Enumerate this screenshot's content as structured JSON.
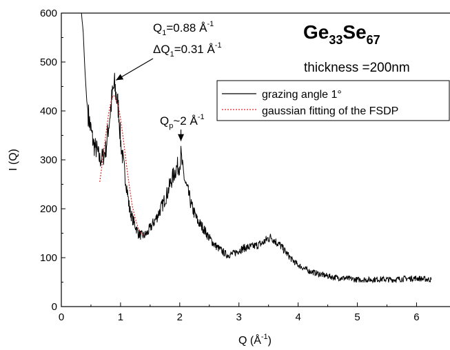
{
  "chart_data": {
    "type": "line",
    "title": {
      "base1": "Ge",
      "sub1": "33",
      "base2": "Se",
      "sub2": "67"
    },
    "subtitle": "thickness =200nm",
    "xlabel": {
      "base": "Q (",
      "unit": "Å",
      "sup": "-1",
      "close": ")"
    },
    "ylabel": "I (Q)",
    "xlim": [
      0,
      6.6
    ],
    "ylim": [
      0,
      600
    ],
    "xticks": [
      0,
      1,
      2,
      3,
      4,
      5,
      6
    ],
    "yticks": [
      0,
      100,
      200,
      300,
      400,
      500,
      600
    ],
    "legend": {
      "placement": "top-right",
      "entries": [
        {
          "label": "grazing angle 1°",
          "color": "#000000",
          "style": "solid"
        },
        {
          "label": "gaussian fitting of the FSDP",
          "color": "#e02020",
          "style": "dotted"
        }
      ]
    },
    "annotations": [
      {
        "line1": {
          "base": "Q",
          "sub": "1",
          "rest": "=0.88 Å",
          "sup": "-1"
        },
        "line2": {
          "base": "ΔQ",
          "sub": "1",
          "rest": "=0.31 Å",
          "sup": "-1"
        },
        "arrow_to": {
          "x": 0.9,
          "y": 460
        }
      },
      {
        "line1": {
          "base": "Q",
          "sub": "p",
          "rest": "~2 Å",
          "sup": "-1"
        },
        "arrow_to": {
          "x": 2.02,
          "y": 330
        }
      }
    ],
    "series": [
      {
        "name": "grazing angle 1°",
        "color": "#000000",
        "x": [
          0.34,
          0.37,
          0.4,
          0.43,
          0.46,
          0.5,
          0.55,
          0.6,
          0.65,
          0.7,
          0.75,
          0.8,
          0.85,
          0.88,
          0.9,
          0.93,
          0.97,
          1.0,
          1.05,
          1.1,
          1.15,
          1.2,
          1.25,
          1.3,
          1.35,
          1.4,
          1.45,
          1.5,
          1.6,
          1.7,
          1.8,
          1.85,
          1.9,
          1.95,
          2.0,
          2.02,
          2.05,
          2.1,
          2.15,
          2.2,
          2.3,
          2.4,
          2.5,
          2.6,
          2.7,
          2.8,
          2.9,
          3.0,
          3.1,
          3.2,
          3.3,
          3.4,
          3.5,
          3.55,
          3.6,
          3.7,
          3.8,
          3.9,
          4.0,
          4.1,
          4.2,
          4.4,
          4.6,
          4.8,
          5.0,
          5.2,
          5.4,
          5.6,
          5.8,
          6.0,
          6.25
        ],
        "y": [
          600,
          560,
          480,
          420,
          390,
          360,
          330,
          320,
          300,
          305,
          320,
          370,
          420,
          445,
          450,
          430,
          400,
          340,
          290,
          250,
          200,
          180,
          165,
          150,
          145,
          145,
          150,
          160,
          180,
          205,
          235,
          255,
          270,
          285,
          290,
          310,
          280,
          250,
          230,
          205,
          175,
          160,
          140,
          125,
          115,
          105,
          108,
          115,
          120,
          122,
          125,
          130,
          140,
          142,
          135,
          125,
          110,
          95,
          85,
          78,
          72,
          65,
          60,
          58,
          55,
          55,
          56,
          55,
          57,
          58,
          55
        ]
      },
      {
        "name": "gaussian fitting of the FSDP",
        "color": "#e02020",
        "x": [
          0.65,
          0.7,
          0.75,
          0.8,
          0.85,
          0.88,
          0.9,
          0.95,
          1.0,
          1.05,
          1.1,
          1.15,
          1.2,
          1.25,
          1.3,
          1.35,
          1.4
        ],
        "y": [
          255,
          300,
          350,
          395,
          425,
          432,
          430,
          418,
          385,
          340,
          290,
          245,
          205,
          180,
          160,
          150,
          145
        ]
      }
    ]
  }
}
